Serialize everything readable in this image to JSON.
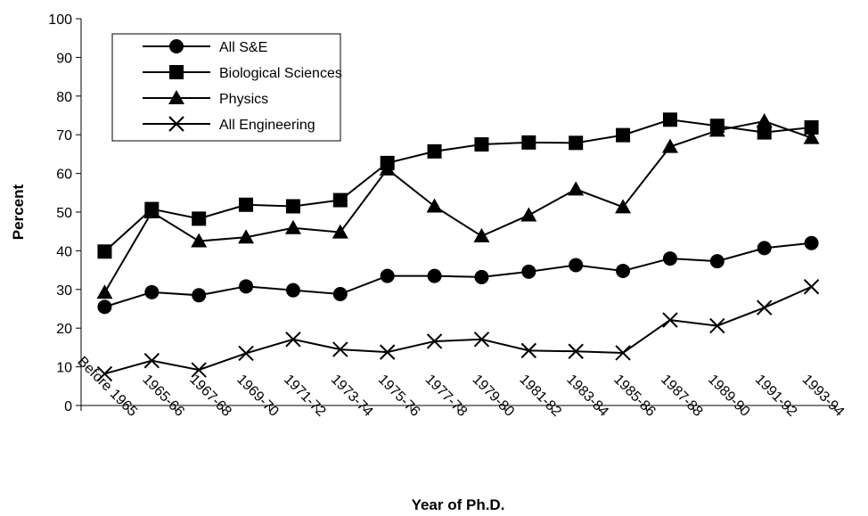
{
  "chart_data": {
    "type": "line",
    "title": "",
    "xlabel": "Year of Ph.D.",
    "ylabel": "Percent",
    "ylim": [
      0,
      100
    ],
    "yticks": [
      0,
      10,
      20,
      30,
      40,
      50,
      60,
      70,
      80,
      90,
      100
    ],
    "grid": false,
    "legend_position": "top-left",
    "categories": [
      "Before 1965",
      "1965-66",
      "1967-68",
      "1969-70",
      "1971-72",
      "1973-74",
      "1975-76",
      "1977-78",
      "1979-80",
      "1981-82",
      "1983-84",
      "1985-86",
      "1987-88",
      "1989-90",
      "1991-92",
      "1993-94"
    ],
    "series": [
      {
        "name": "All S&E",
        "marker": "circle",
        "color": "#000000",
        "values": [
          25.5,
          29.3,
          28.5,
          30.8,
          29.8,
          28.8,
          33.5,
          33.5,
          33.2,
          34.6,
          36.3,
          34.8,
          38.0,
          37.3,
          40.7,
          42.0
        ]
      },
      {
        "name": "Biological Sciences",
        "marker": "square",
        "color": "#000000",
        "values": [
          39.8,
          50.8,
          48.3,
          51.9,
          51.5,
          53.1,
          62.7,
          65.7,
          67.5,
          68.0,
          67.9,
          69.9,
          73.9,
          72.3,
          70.6,
          71.9
        ]
      },
      {
        "name": "Physics",
        "marker": "triangle",
        "color": "#000000",
        "values": [
          29.2,
          50.0,
          42.5,
          43.5,
          45.9,
          44.8,
          61.1,
          51.5,
          43.8,
          49.2,
          55.9,
          51.3,
          66.9,
          71.1,
          73.5,
          69.2
        ]
      },
      {
        "name": "All Engineering",
        "marker": "x",
        "color": "#000000",
        "values": [
          8.2,
          11.6,
          9.2,
          13.5,
          17.1,
          14.5,
          13.8,
          16.6,
          17.1,
          14.2,
          14.0,
          13.6,
          22.1,
          20.6,
          25.3,
          30.7
        ]
      }
    ]
  }
}
